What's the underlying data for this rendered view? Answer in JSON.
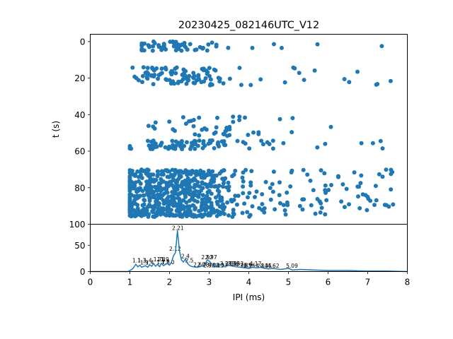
{
  "chart_data": [
    {
      "type": "scatter",
      "title": "20230425_082146UTC_V12",
      "xlabel": "",
      "ylabel": "t (s)",
      "xlim": [
        0,
        8
      ],
      "ylim": [
        100,
        -4
      ],
      "y_inverted": true,
      "xticks": [
        0,
        1,
        2,
        3,
        4,
        5,
        6,
        7,
        8
      ],
      "yticks": [
        0,
        20,
        40,
        60,
        80,
        100
      ],
      "color": "#1f77b4",
      "clusters": [
        {
          "t_range": [
            0,
            5
          ],
          "x_range": [
            1.3,
            7.4
          ],
          "x_peak": 2.2,
          "x_spread": 0.6,
          "count": 60
        },
        {
          "t_range": [
            14,
            24
          ],
          "x_range": [
            1.0,
            7.6
          ],
          "x_peak": 2.2,
          "x_spread": 0.7,
          "count": 110
        },
        {
          "t_range": [
            41,
            52
          ],
          "x_range": [
            1.3,
            7.1
          ],
          "x_peak": 3.2,
          "x_spread": 0.7,
          "count": 45
        },
        {
          "t_range": [
            54,
            59
          ],
          "x_range": [
            1.0,
            8.0
          ],
          "x_peak": 2.3,
          "x_spread": 0.8,
          "count": 85
        },
        {
          "t_range": [
            70,
            96
          ],
          "x_range": [
            1.0,
            7.7
          ],
          "x_peak": 2.2,
          "x_spread": 0.8,
          "count": 700
        }
      ]
    },
    {
      "type": "line",
      "xlabel": "IPI (ms)",
      "ylabel": "",
      "xlim": [
        0,
        8
      ],
      "ylim": [
        0,
        90
      ],
      "xticks": [
        0,
        1,
        2,
        3,
        4,
        5,
        6,
        7,
        8
      ],
      "yticks": [
        0,
        50
      ],
      "color": "#1f77b4",
      "x": [
        0,
        0.95,
        1.0,
        1.05,
        1.1,
        1.15,
        1.2,
        1.25,
        1.3,
        1.35,
        1.4,
        1.45,
        1.5,
        1.55,
        1.6,
        1.65,
        1.7,
        1.75,
        1.8,
        1.85,
        1.9,
        1.95,
        2.0,
        2.05,
        2.1,
        2.15,
        2.2,
        2.25,
        2.3,
        2.35,
        2.4,
        2.45,
        2.5,
        2.55,
        2.6,
        2.7,
        2.8,
        2.9,
        2.95,
        3.0,
        3.1,
        3.2,
        3.3,
        3.4,
        3.5,
        3.6,
        3.7,
        3.8,
        3.9,
        4.0,
        4.1,
        4.2,
        4.3,
        4.4,
        4.5,
        4.6,
        4.8,
        5.0,
        5.1,
        5.3,
        5.6,
        6.0,
        6.5,
        7.0,
        7.5,
        8.0
      ],
      "values": [
        0,
        0,
        2,
        4,
        8,
        14,
        9,
        12,
        8,
        10,
        11,
        8,
        13,
        10,
        15,
        10,
        14,
        9,
        16,
        11,
        14,
        15,
        12,
        18,
        30,
        36,
        78,
        40,
        22,
        18,
        24,
        16,
        12,
        10,
        9,
        8,
        10,
        14,
        22,
        20,
        12,
        10,
        14,
        9,
        12,
        10,
        9,
        8,
        7,
        6,
        8,
        7,
        8,
        6,
        5,
        6,
        4,
        6,
        3,
        4,
        3,
        2,
        2,
        1,
        1,
        0
      ],
      "annotations": [
        {
          "x": 1.17,
          "y": 16,
          "text": "1.1"
        },
        {
          "x": 1.3,
          "y": 16,
          "text": "1.3"
        },
        {
          "x": 1.36,
          "y": 12,
          "text": "1.3"
        },
        {
          "x": 1.45,
          "y": 16,
          "text": "1.4"
        },
        {
          "x": 1.5,
          "y": 12,
          "text": "1.4"
        },
        {
          "x": 1.7,
          "y": 18,
          "text": "1.7"
        },
        {
          "x": 1.79,
          "y": 18,
          "text": "1.8"
        },
        {
          "x": 1.88,
          "y": 18,
          "text": "1.9"
        },
        {
          "x": 1.78,
          "y": 13,
          "text": "1.7"
        },
        {
          "x": 1.9,
          "y": 13,
          "text": "1.8"
        },
        {
          "x": 2.02,
          "y": 13,
          "text": "2.0"
        },
        {
          "x": 2.14,
          "y": 38,
          "text": "2.12"
        },
        {
          "x": 2.21,
          "y": 78,
          "text": "2.21"
        },
        {
          "x": 2.4,
          "y": 24,
          "text": "2.4"
        },
        {
          "x": 2.5,
          "y": 16,
          "text": "2.5"
        },
        {
          "x": 2.75,
          "y": 8,
          "text": "2.69"
        },
        {
          "x": 2.85,
          "y": 8,
          "text": "2.78"
        },
        {
          "x": 2.95,
          "y": 22,
          "text": "2.92"
        },
        {
          "x": 3.05,
          "y": 22,
          "text": "2.97"
        },
        {
          "x": 3.0,
          "y": 7,
          "text": "2.94"
        },
        {
          "x": 3.12,
          "y": 7,
          "text": "3.08"
        },
        {
          "x": 3.22,
          "y": 7,
          "text": "3.13"
        },
        {
          "x": 3.32,
          "y": 7,
          "text": "3.27"
        },
        {
          "x": 3.42,
          "y": 10,
          "text": "3.28"
        },
        {
          "x": 3.55,
          "y": 10,
          "text": "3.36"
        },
        {
          "x": 3.62,
          "y": 10,
          "text": "3.39"
        },
        {
          "x": 3.72,
          "y": 10,
          "text": "3.53"
        },
        {
          "x": 3.8,
          "y": 7,
          "text": "3.76"
        },
        {
          "x": 3.92,
          "y": 7,
          "text": "3.85"
        },
        {
          "x": 4.02,
          "y": 7,
          "text": "3.96"
        },
        {
          "x": 4.17,
          "y": 10,
          "text": "4.17"
        },
        {
          "x": 4.33,
          "y": 6,
          "text": "4.34"
        },
        {
          "x": 4.43,
          "y": 6,
          "text": "4.35"
        },
        {
          "x": 4.62,
          "y": 6,
          "text": "4.62"
        },
        {
          "x": 5.09,
          "y": 6,
          "text": "5.09"
        }
      ]
    }
  ]
}
